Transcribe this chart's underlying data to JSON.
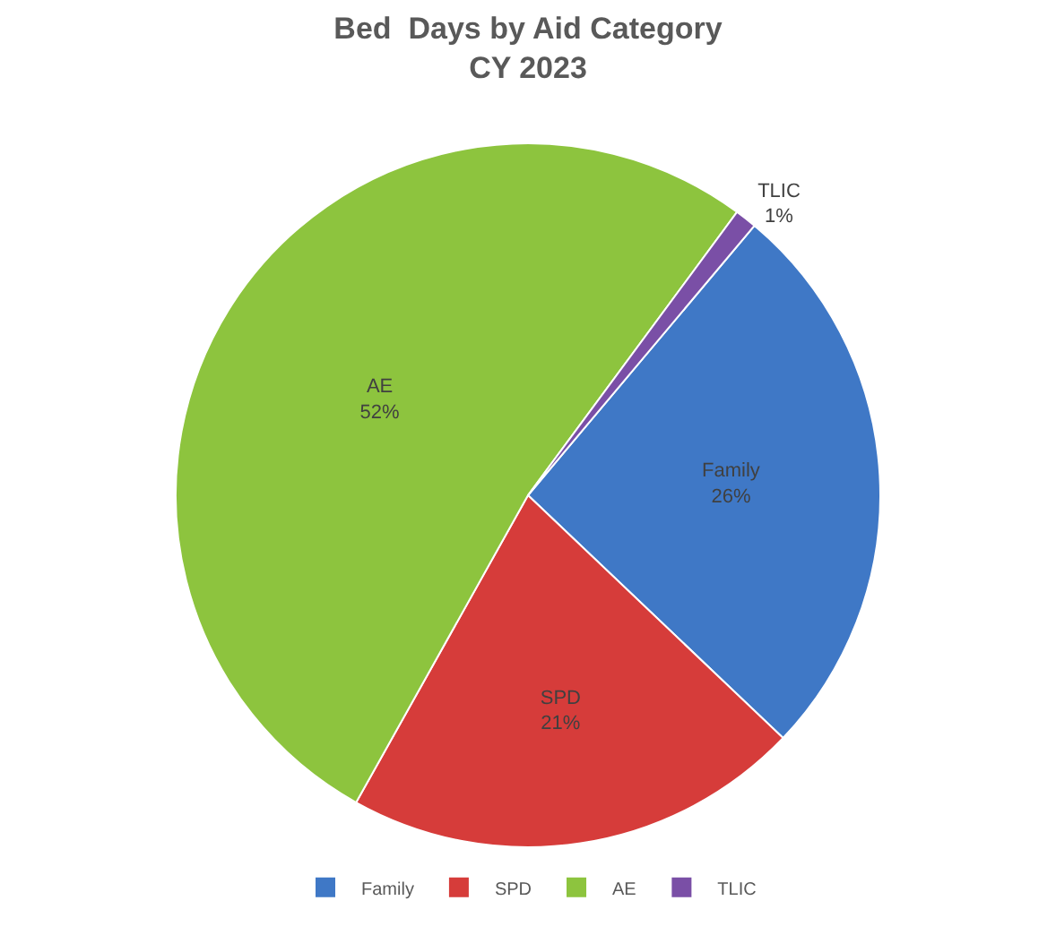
{
  "chart_data": {
    "type": "pie",
    "title": "Bed  Days by Aid Category",
    "subtitle": "CY 2023",
    "categories": [
      "Family",
      "SPD",
      "AE",
      "TLIC"
    ],
    "values": [
      26,
      21,
      52,
      1
    ],
    "value_labels": [
      "26%",
      "21%",
      "52%",
      "1%"
    ],
    "colors": [
      "#3f78c6",
      "#d63c3a",
      "#8dc43e",
      "#7a4fa6"
    ],
    "legend": "bottom"
  }
}
